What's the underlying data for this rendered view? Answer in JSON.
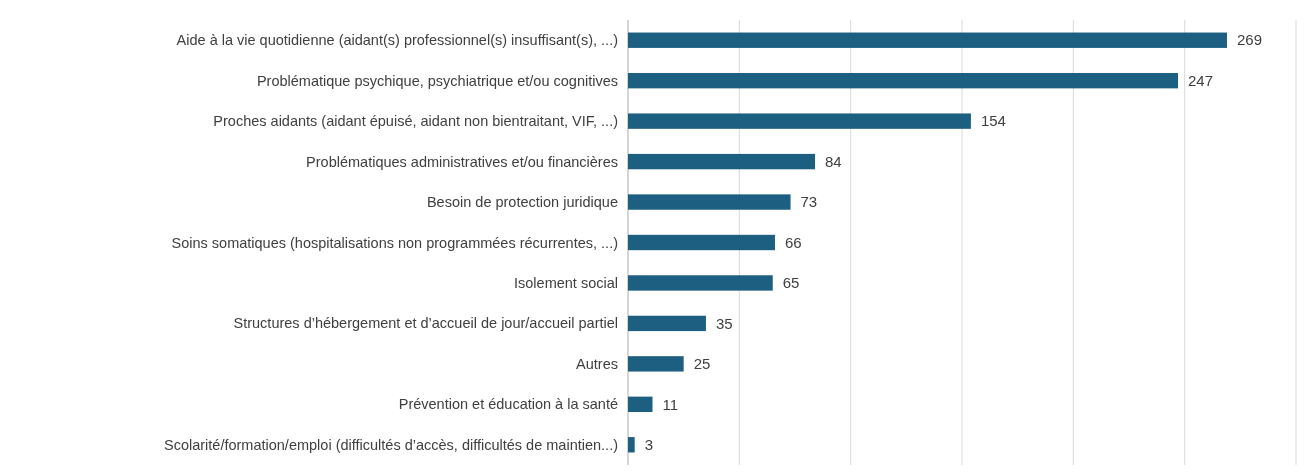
{
  "chart_data": {
    "type": "bar",
    "orientation": "horizontal",
    "categories": [
      "Aide à la vie quotidienne (aidant(s) professionnel(s) insuffisant(s), ...)",
      "Problématique psychique, psychiatrique et/ou cognitives",
      "Proches aidants (aidant épuisé, aidant non bientraitant, VIF, ...)",
      "Problématiques administratives et/ou financières",
      "Besoin de protection juridique",
      "Soins somatiques (hospitalisations non programmées récurrentes, ...)",
      "Isolement social",
      "Structures d’hébergement et d’accueil de jour/accueil partiel",
      "Autres",
      "Prévention et éducation à la santé",
      "Scolarité/formation/emploi (difficultés d’accès, difficultés de maintien...)"
    ],
    "values": [
      269,
      247,
      154,
      84,
      73,
      66,
      65,
      35,
      25,
      11,
      3
    ],
    "color": "#1d5f80",
    "xlim": [
      0,
      300
    ],
    "xticks": [
      {
        "value": 0,
        "label": null
      },
      {
        "value": 50,
        "label": null
      },
      {
        "value": 100,
        "label": null
      },
      {
        "value": 150,
        "label": null
      },
      {
        "value": 200,
        "label": null
      },
      {
        "value": 250,
        "label": null
      },
      {
        "value": 300,
        "label": null
      }
    ],
    "grid": "x",
    "data_labels": true
  }
}
